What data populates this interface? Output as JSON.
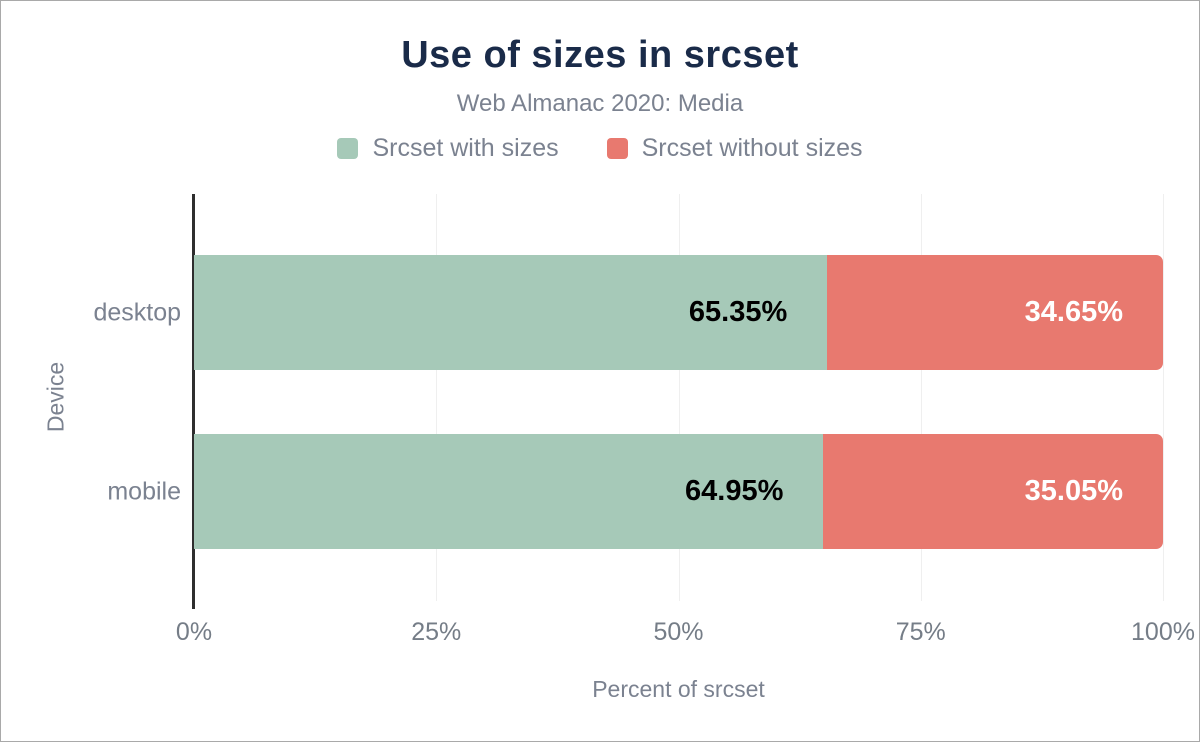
{
  "title": "Use of sizes in srcset",
  "subtitle": "Web Almanac 2020: Media",
  "legend": {
    "items": [
      {
        "label": "Srcset with sizes",
        "color": "#a6c9b8"
      },
      {
        "label": "Srcset without sizes",
        "color": "#e8796f"
      }
    ]
  },
  "chart_data": {
    "type": "bar",
    "orientation": "horizontal",
    "stacked": true,
    "title": "Use of sizes in srcset",
    "subtitle": "Web Almanac 2020: Media",
    "categories": [
      "desktop",
      "mobile"
    ],
    "series": [
      {
        "name": "Srcset with sizes",
        "color": "#a6c9b8",
        "label_color": "#000000",
        "values": [
          65.35,
          64.95
        ],
        "labels": [
          "65.35%",
          "64.95%"
        ]
      },
      {
        "name": "Srcset without sizes",
        "color": "#e8796f",
        "label_color": "#ffffff",
        "values": [
          34.65,
          35.05
        ],
        "labels": [
          "34.65%",
          "35.05%"
        ]
      }
    ],
    "xlabel": "Percent of srcset",
    "ylabel": "Device",
    "xlim": [
      0,
      100
    ],
    "x_tick_values": [
      0,
      25,
      50,
      75,
      100
    ],
    "x_tick_labels": [
      "0%",
      "25%",
      "50%",
      "75%",
      "100%"
    ],
    "grid": "vertical",
    "legend_position": "top"
  },
  "colors": {
    "title_text": "#1a2b49",
    "subtitle_text": "#7b8290",
    "axis_text": "#757d87",
    "gridline": "#efefef",
    "axis_line": "#2e2e2e",
    "background": "#ffffff",
    "green_series": "#a6c9b8",
    "red_series": "#e8796f"
  }
}
